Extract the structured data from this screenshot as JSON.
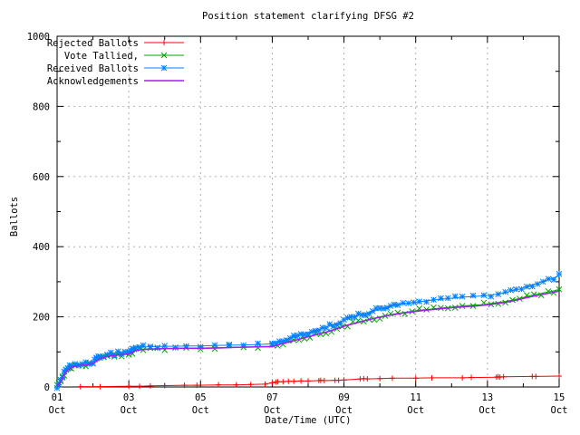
{
  "chart_data": {
    "type": "line",
    "title": "Position statement clarifying DFSG #2",
    "xlabel": "Date/Time (UTC)",
    "ylabel": "Ballots",
    "x_unit": "day of October (UTC)",
    "xlim": [
      1,
      15
    ],
    "ylim": [
      0,
      1000
    ],
    "grid": true,
    "legend_position": "top-left",
    "x_ticks": [
      {
        "value": 1,
        "label_day": "01",
        "label_month": "Oct"
      },
      {
        "value": 3,
        "label_day": "03",
        "label_month": "Oct"
      },
      {
        "value": 5,
        "label_day": "05",
        "label_month": "Oct"
      },
      {
        "value": 7,
        "label_day": "07",
        "label_month": "Oct"
      },
      {
        "value": 9,
        "label_day": "09",
        "label_month": "Oct"
      },
      {
        "value": 11,
        "label_day": "11",
        "label_month": "Oct"
      },
      {
        "value": 13,
        "label_day": "13",
        "label_month": "Oct"
      },
      {
        "value": 15,
        "label_day": "15",
        "label_month": "Oct"
      }
    ],
    "x_minor_ticks": [
      2,
      4,
      6,
      8,
      10,
      12,
      14
    ],
    "y_ticks": [
      {
        "value": 0,
        "label": "0"
      },
      {
        "value": 200,
        "label": "200"
      },
      {
        "value": 400,
        "label": "400"
      },
      {
        "value": 600,
        "label": "600"
      },
      {
        "value": 800,
        "label": "800"
      },
      {
        "value": 1000,
        "label": "1000"
      }
    ],
    "y_minor_ticks": [
      100,
      300,
      500,
      700,
      900
    ],
    "series": [
      {
        "name": "Rejected Ballots",
        "color": "#ff0000",
        "marker": "plus",
        "points": [
          [
            1.65,
            1
          ],
          [
            2.2,
            1
          ],
          [
            3.0,
            2
          ],
          [
            3.3,
            2
          ],
          [
            3.6,
            3
          ],
          [
            4.0,
            4
          ],
          [
            4.55,
            5
          ],
          [
            4.9,
            5
          ],
          [
            5.5,
            6
          ],
          [
            6.0,
            6
          ],
          [
            6.4,
            7
          ],
          [
            6.8,
            8
          ],
          [
            7.0,
            12
          ],
          [
            7.1,
            14
          ],
          [
            7.15,
            15
          ],
          [
            7.3,
            15
          ],
          [
            7.45,
            16
          ],
          [
            7.6,
            16
          ],
          [
            7.8,
            17
          ],
          [
            8.0,
            17
          ],
          [
            8.3,
            18
          ],
          [
            8.35,
            19
          ],
          [
            8.45,
            18
          ],
          [
            8.75,
            19
          ],
          [
            8.85,
            19
          ],
          [
            9.0,
            20
          ],
          [
            9.45,
            23
          ],
          [
            9.55,
            24
          ],
          [
            9.65,
            23
          ],
          [
            10.0,
            24
          ],
          [
            10.35,
            25
          ],
          [
            11.0,
            25
          ],
          [
            11.45,
            26
          ],
          [
            12.3,
            26
          ],
          [
            12.55,
            27
          ],
          [
            13.25,
            28
          ],
          [
            13.3,
            29
          ],
          [
            13.35,
            28
          ],
          [
            13.45,
            29
          ],
          [
            14.25,
            30
          ],
          [
            14.35,
            30
          ],
          [
            15.0,
            31
          ]
        ]
      },
      {
        "name": "Vote Tallied,",
        "color": "#00a400",
        "marker": "cross",
        "points": [
          [
            1.0,
            2
          ],
          [
            1.05,
            7
          ],
          [
            1.1,
            16
          ],
          [
            1.15,
            27
          ],
          [
            1.2,
            37
          ],
          [
            1.25,
            45
          ],
          [
            1.3,
            50
          ],
          [
            1.35,
            54
          ],
          [
            1.4,
            57
          ],
          [
            1.5,
            60
          ],
          [
            1.6,
            62
          ],
          [
            1.7,
            63
          ],
          [
            1.8,
            64
          ],
          [
            1.9,
            66
          ],
          [
            2.0,
            68
          ],
          [
            2.1,
            76
          ],
          [
            2.2,
            82
          ],
          [
            2.3,
            85
          ],
          [
            2.4,
            88
          ],
          [
            2.5,
            90
          ],
          [
            2.6,
            91
          ],
          [
            2.7,
            92
          ],
          [
            2.8,
            93
          ],
          [
            2.9,
            94
          ],
          [
            3.0,
            95
          ],
          [
            3.1,
            100
          ],
          [
            3.2,
            105
          ],
          [
            3.3,
            107
          ],
          [
            3.4,
            108
          ],
          [
            3.6,
            109
          ],
          [
            3.8,
            109
          ],
          [
            4.0,
            110
          ],
          [
            4.3,
            110
          ],
          [
            4.6,
            111
          ],
          [
            5.0,
            111
          ],
          [
            5.4,
            112
          ],
          [
            5.8,
            113
          ],
          [
            6.2,
            114
          ],
          [
            6.6,
            115
          ],
          [
            7.0,
            116
          ],
          [
            7.15,
            121
          ],
          [
            7.3,
            125
          ],
          [
            7.45,
            129
          ],
          [
            7.6,
            133
          ],
          [
            7.75,
            137
          ],
          [
            7.9,
            141
          ],
          [
            8.05,
            145
          ],
          [
            8.2,
            149
          ],
          [
            8.35,
            153
          ],
          [
            8.5,
            157
          ],
          [
            8.65,
            162
          ],
          [
            8.8,
            167
          ],
          [
            8.95,
            172
          ],
          [
            9.1,
            177
          ],
          [
            9.25,
            181
          ],
          [
            9.4,
            185
          ],
          [
            9.55,
            189
          ],
          [
            9.7,
            193
          ],
          [
            9.85,
            196
          ],
          [
            10.0,
            200
          ],
          [
            10.15,
            203
          ],
          [
            10.3,
            206
          ],
          [
            10.5,
            210
          ],
          [
            10.7,
            213
          ],
          [
            10.9,
            216
          ],
          [
            11.1,
            219
          ],
          [
            11.3,
            221
          ],
          [
            11.5,
            223
          ],
          [
            11.7,
            225
          ],
          [
            11.9,
            227
          ],
          [
            12.1,
            229
          ],
          [
            12.3,
            231
          ],
          [
            12.6,
            233
          ],
          [
            12.9,
            235
          ],
          [
            13.1,
            238
          ],
          [
            13.3,
            241
          ],
          [
            13.5,
            244
          ],
          [
            13.7,
            248
          ],
          [
            13.9,
            253
          ],
          [
            14.1,
            258
          ],
          [
            14.3,
            263
          ],
          [
            14.5,
            267
          ],
          [
            14.7,
            271
          ],
          [
            14.85,
            274
          ],
          [
            15.0,
            278
          ]
        ]
      },
      {
        "name": "Received Ballots",
        "color": "#0080ff",
        "marker": "asterisk",
        "points": [
          [
            1.0,
            2
          ],
          [
            1.05,
            8
          ],
          [
            1.1,
            18
          ],
          [
            1.15,
            30
          ],
          [
            1.2,
            40
          ],
          [
            1.25,
            48
          ],
          [
            1.3,
            54
          ],
          [
            1.35,
            58
          ],
          [
            1.4,
            61
          ],
          [
            1.5,
            64
          ],
          [
            1.6,
            66
          ],
          [
            1.7,
            67
          ],
          [
            1.8,
            68
          ],
          [
            1.9,
            70
          ],
          [
            2.0,
            73
          ],
          [
            2.05,
            77
          ],
          [
            2.1,
            81
          ],
          [
            2.15,
            84
          ],
          [
            2.2,
            87
          ],
          [
            2.3,
            90
          ],
          [
            2.4,
            93
          ],
          [
            2.5,
            95
          ],
          [
            2.6,
            96
          ],
          [
            2.7,
            97
          ],
          [
            2.8,
            98
          ],
          [
            2.9,
            99
          ],
          [
            3.0,
            101
          ],
          [
            3.05,
            104
          ],
          [
            3.1,
            107
          ],
          [
            3.15,
            110
          ],
          [
            3.2,
            112
          ],
          [
            3.3,
            113
          ],
          [
            3.4,
            114
          ],
          [
            3.6,
            115
          ],
          [
            3.8,
            115
          ],
          [
            4.0,
            116
          ],
          [
            4.3,
            116
          ],
          [
            4.6,
            117
          ],
          [
            5.0,
            117
          ],
          [
            5.4,
            118
          ],
          [
            5.8,
            119
          ],
          [
            6.2,
            120
          ],
          [
            6.6,
            121
          ],
          [
            7.0,
            123
          ],
          [
            7.1,
            126
          ],
          [
            7.2,
            129
          ],
          [
            7.3,
            132
          ],
          [
            7.4,
            135
          ],
          [
            7.5,
            139
          ],
          [
            7.6,
            142
          ],
          [
            7.7,
            145
          ],
          [
            7.8,
            149
          ],
          [
            7.9,
            152
          ],
          [
            8.0,
            155
          ],
          [
            8.1,
            158
          ],
          [
            8.2,
            161
          ],
          [
            8.3,
            164
          ],
          [
            8.4,
            167
          ],
          [
            8.5,
            170
          ],
          [
            8.6,
            174
          ],
          [
            8.7,
            178
          ],
          [
            8.8,
            182
          ],
          [
            8.9,
            186
          ],
          [
            9.0,
            190
          ],
          [
            9.1,
            194
          ],
          [
            9.2,
            198
          ],
          [
            9.3,
            201
          ],
          [
            9.4,
            204
          ],
          [
            9.5,
            207
          ],
          [
            9.6,
            210
          ],
          [
            9.7,
            213
          ],
          [
            9.8,
            216
          ],
          [
            9.9,
            219
          ],
          [
            10.0,
            222
          ],
          [
            10.1,
            225
          ],
          [
            10.2,
            227
          ],
          [
            10.3,
            230
          ],
          [
            10.4,
            232
          ],
          [
            10.5,
            234
          ],
          [
            10.65,
            237
          ],
          [
            10.8,
            239
          ],
          [
            10.95,
            241
          ],
          [
            11.1,
            243
          ],
          [
            11.3,
            246
          ],
          [
            11.5,
            248
          ],
          [
            11.7,
            250
          ],
          [
            11.9,
            252
          ],
          [
            12.1,
            254
          ],
          [
            12.3,
            256
          ],
          [
            12.6,
            258
          ],
          [
            12.9,
            260
          ],
          [
            13.1,
            262
          ],
          [
            13.3,
            265
          ],
          [
            13.5,
            269
          ],
          [
            13.65,
            273
          ],
          [
            13.8,
            277
          ],
          [
            13.95,
            281
          ],
          [
            14.1,
            286
          ],
          [
            14.25,
            291
          ],
          [
            14.4,
            296
          ],
          [
            14.55,
            301
          ],
          [
            14.7,
            306
          ],
          [
            14.85,
            311
          ],
          [
            15.0,
            317
          ]
        ]
      },
      {
        "name": "Acknowledgements",
        "color": "#a020f0",
        "marker": "none",
        "points": [
          [
            1.0,
            2
          ],
          [
            1.1,
            15
          ],
          [
            1.2,
            36
          ],
          [
            1.3,
            49
          ],
          [
            1.4,
            56
          ],
          [
            1.6,
            61
          ],
          [
            1.8,
            63
          ],
          [
            2.0,
            67
          ],
          [
            2.2,
            81
          ],
          [
            2.4,
            87
          ],
          [
            2.6,
            90
          ],
          [
            2.8,
            92
          ],
          [
            3.0,
            94
          ],
          [
            3.2,
            104
          ],
          [
            3.4,
            107
          ],
          [
            3.7,
            108
          ],
          [
            4.0,
            109
          ],
          [
            4.5,
            110
          ],
          [
            5.0,
            110
          ],
          [
            5.5,
            111
          ],
          [
            6.0,
            113
          ],
          [
            6.5,
            114
          ],
          [
            7.0,
            115
          ],
          [
            7.3,
            124
          ],
          [
            7.6,
            132
          ],
          [
            7.9,
            140
          ],
          [
            8.2,
            148
          ],
          [
            8.5,
            156
          ],
          [
            8.8,
            166
          ],
          [
            9.1,
            176
          ],
          [
            9.4,
            184
          ],
          [
            9.7,
            192
          ],
          [
            10.0,
            199
          ],
          [
            10.3,
            205
          ],
          [
            10.6,
            210
          ],
          [
            10.9,
            214
          ],
          [
            11.2,
            218
          ],
          [
            11.5,
            221
          ],
          [
            11.8,
            224
          ],
          [
            12.1,
            227
          ],
          [
            12.4,
            229
          ],
          [
            12.7,
            231
          ],
          [
            13.0,
            234
          ],
          [
            13.3,
            238
          ],
          [
            13.6,
            243
          ],
          [
            13.9,
            250
          ],
          [
            14.2,
            257
          ],
          [
            14.5,
            263
          ],
          [
            14.8,
            269
          ],
          [
            15.0,
            273
          ]
        ]
      }
    ]
  }
}
